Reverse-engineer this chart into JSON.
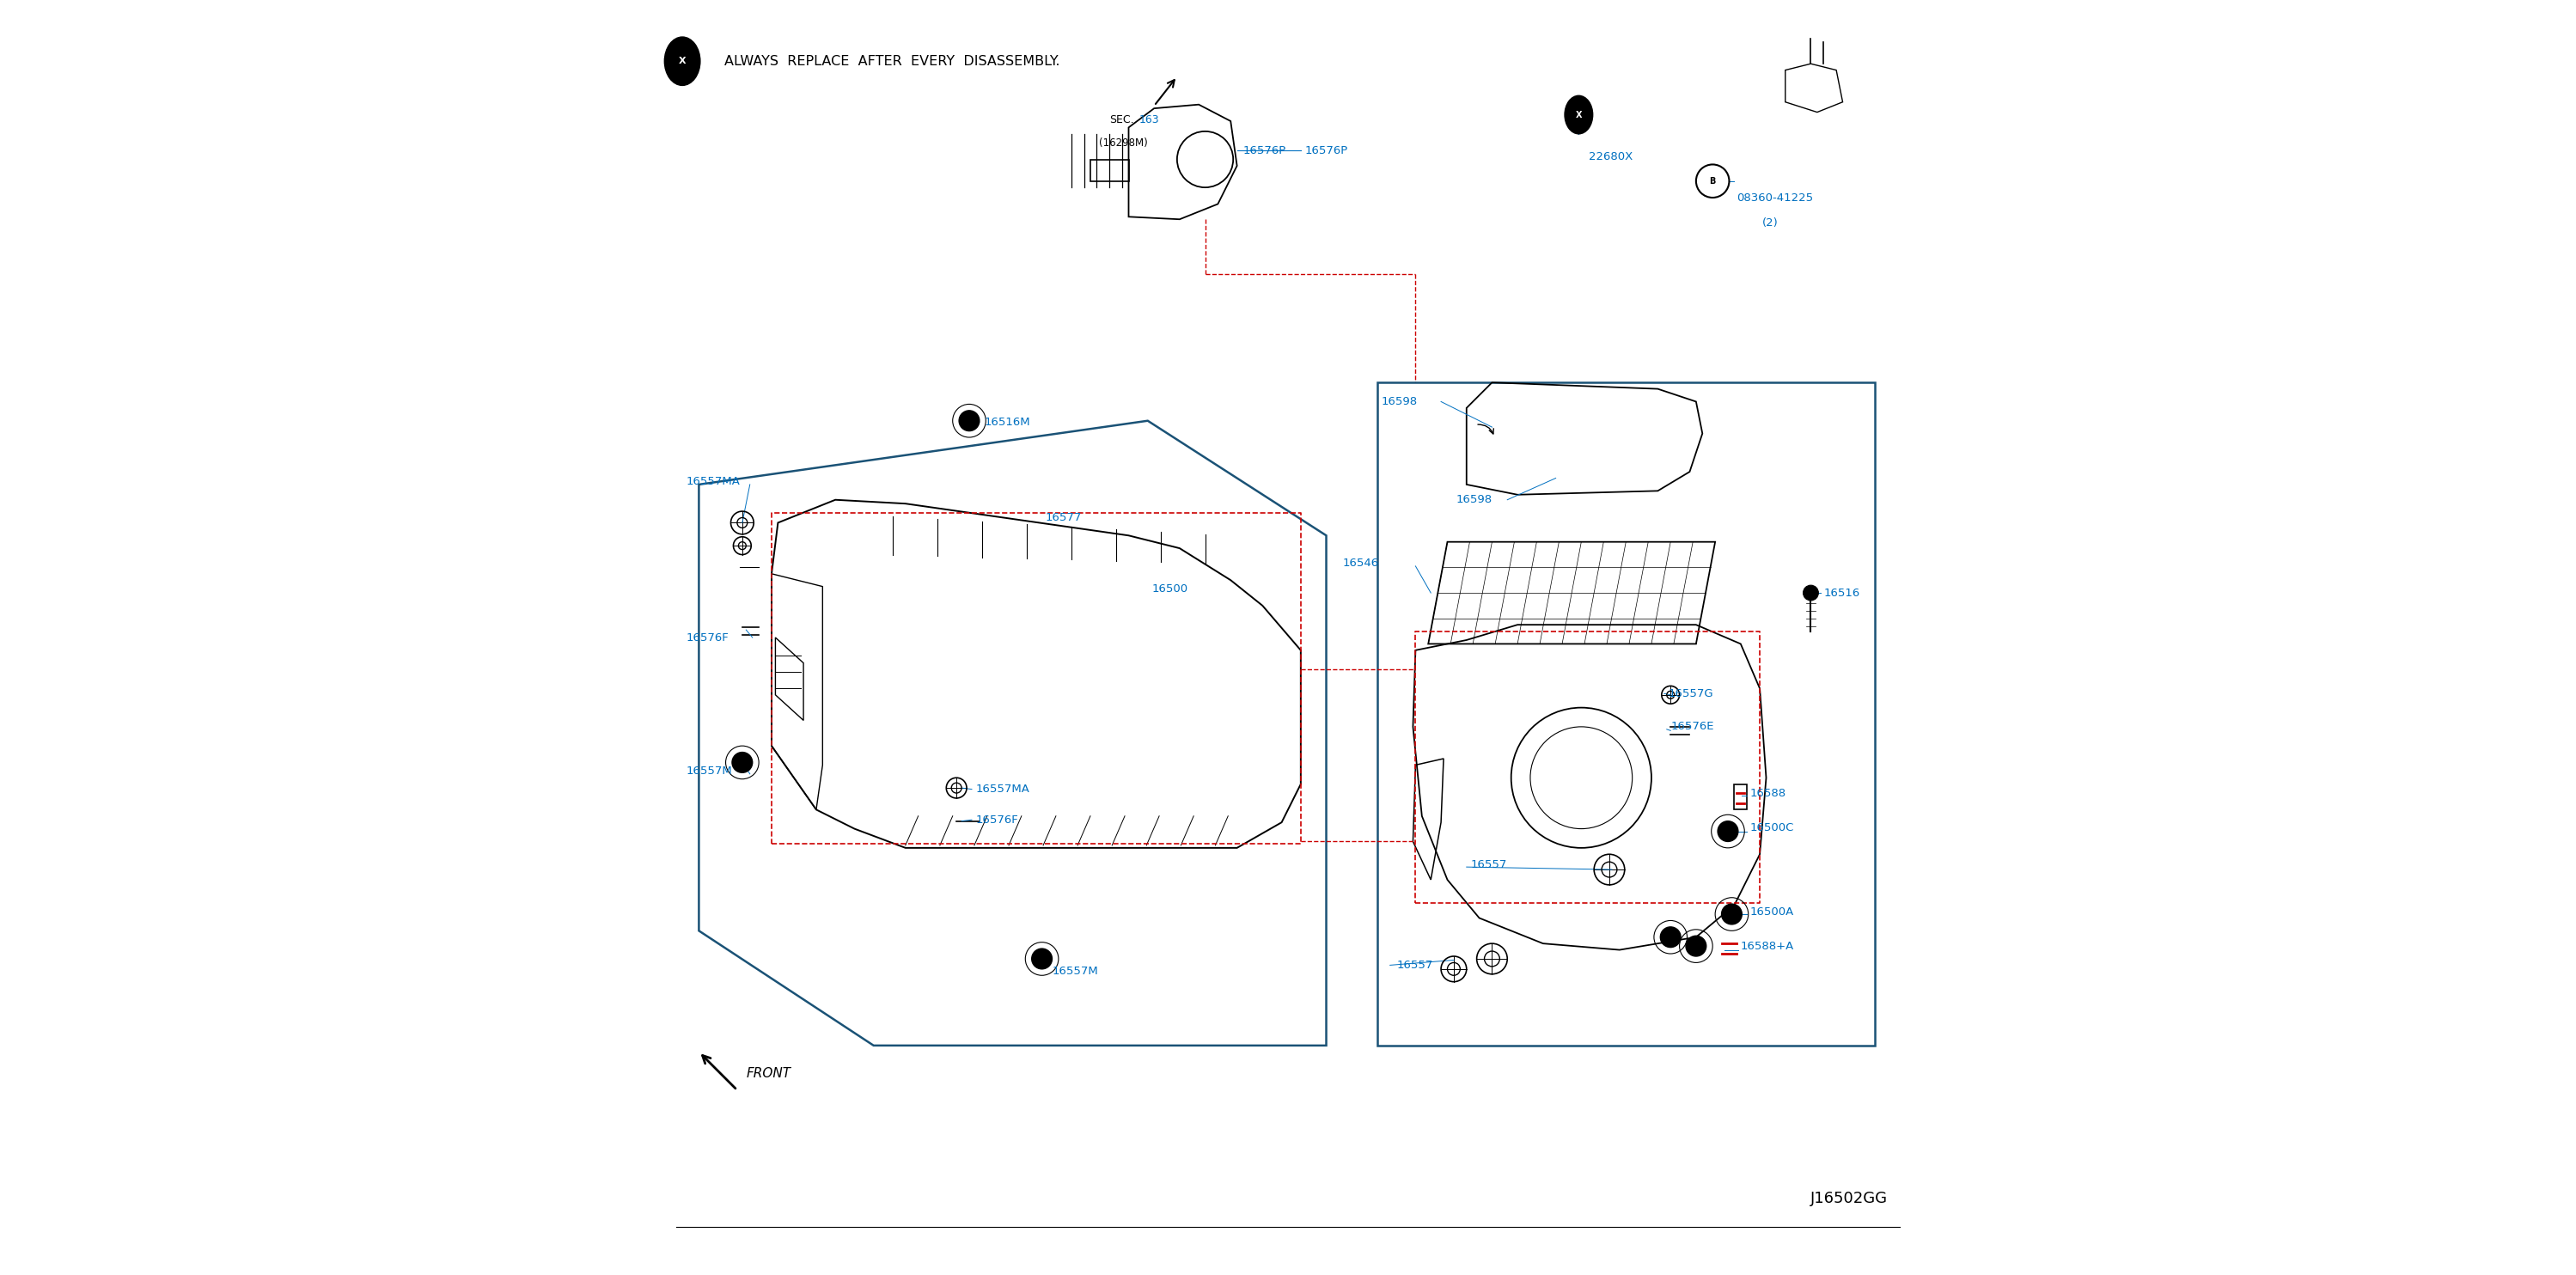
{
  "bg_color": "#ffffff",
  "text_color_black": "#000000",
  "text_color_blue": "#0070c0",
  "text_color_red": "#cc0000",
  "always_replace_text": "ALWAYS  REPLACE  AFTER  EVERY  DISASSEMBLY.",
  "diagram_code": "J16502GG",
  "sec_label": "SEC.",
  "sec_number": "163",
  "sec_sub": "(16298M)",
  "front_label": "FRONT",
  "b_circle_label": "B"
}
